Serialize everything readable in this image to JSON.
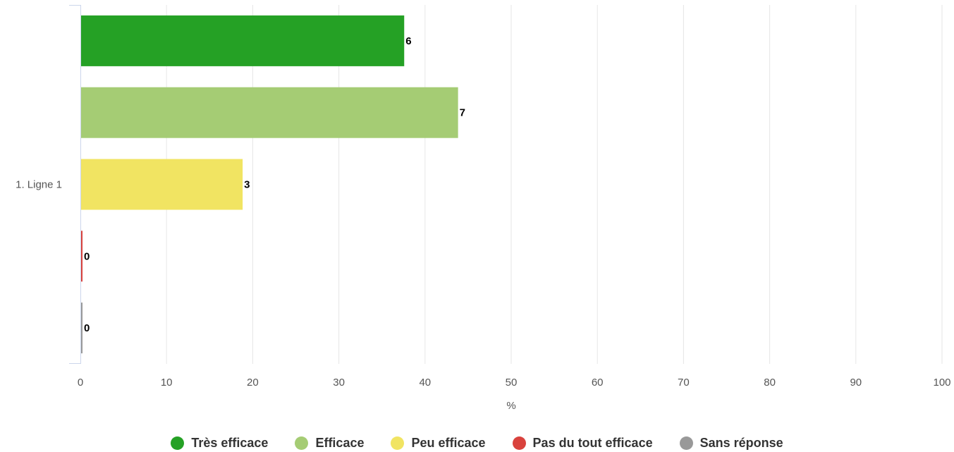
{
  "chart_data": {
    "type": "bar",
    "orientation": "horizontal",
    "categories": [
      "1. Ligne 1"
    ],
    "series": [
      {
        "name": "Très efficace",
        "color": "#25a125",
        "values": [
          37.5
        ],
        "label": "6"
      },
      {
        "name": "Efficace",
        "color": "#a5cc74",
        "values": [
          43.75
        ],
        "label": "7"
      },
      {
        "name": "Peu efficace",
        "color": "#f1e462",
        "values": [
          18.75
        ],
        "label": "3"
      },
      {
        "name": "Pas du tout efficace",
        "color": "#d9423d",
        "values": [
          0
        ],
        "label": "0"
      },
      {
        "name": "Sans réponse",
        "color": "#999999",
        "values": [
          0
        ],
        "label": "0"
      }
    ],
    "xlabel": "%",
    "xlim": [
      0,
      100
    ],
    "xticks": [
      "0",
      "10",
      "20",
      "30",
      "40",
      "50",
      "60",
      "70",
      "80",
      "90",
      "100"
    ],
    "grid": true,
    "legend_position": "bottom"
  }
}
